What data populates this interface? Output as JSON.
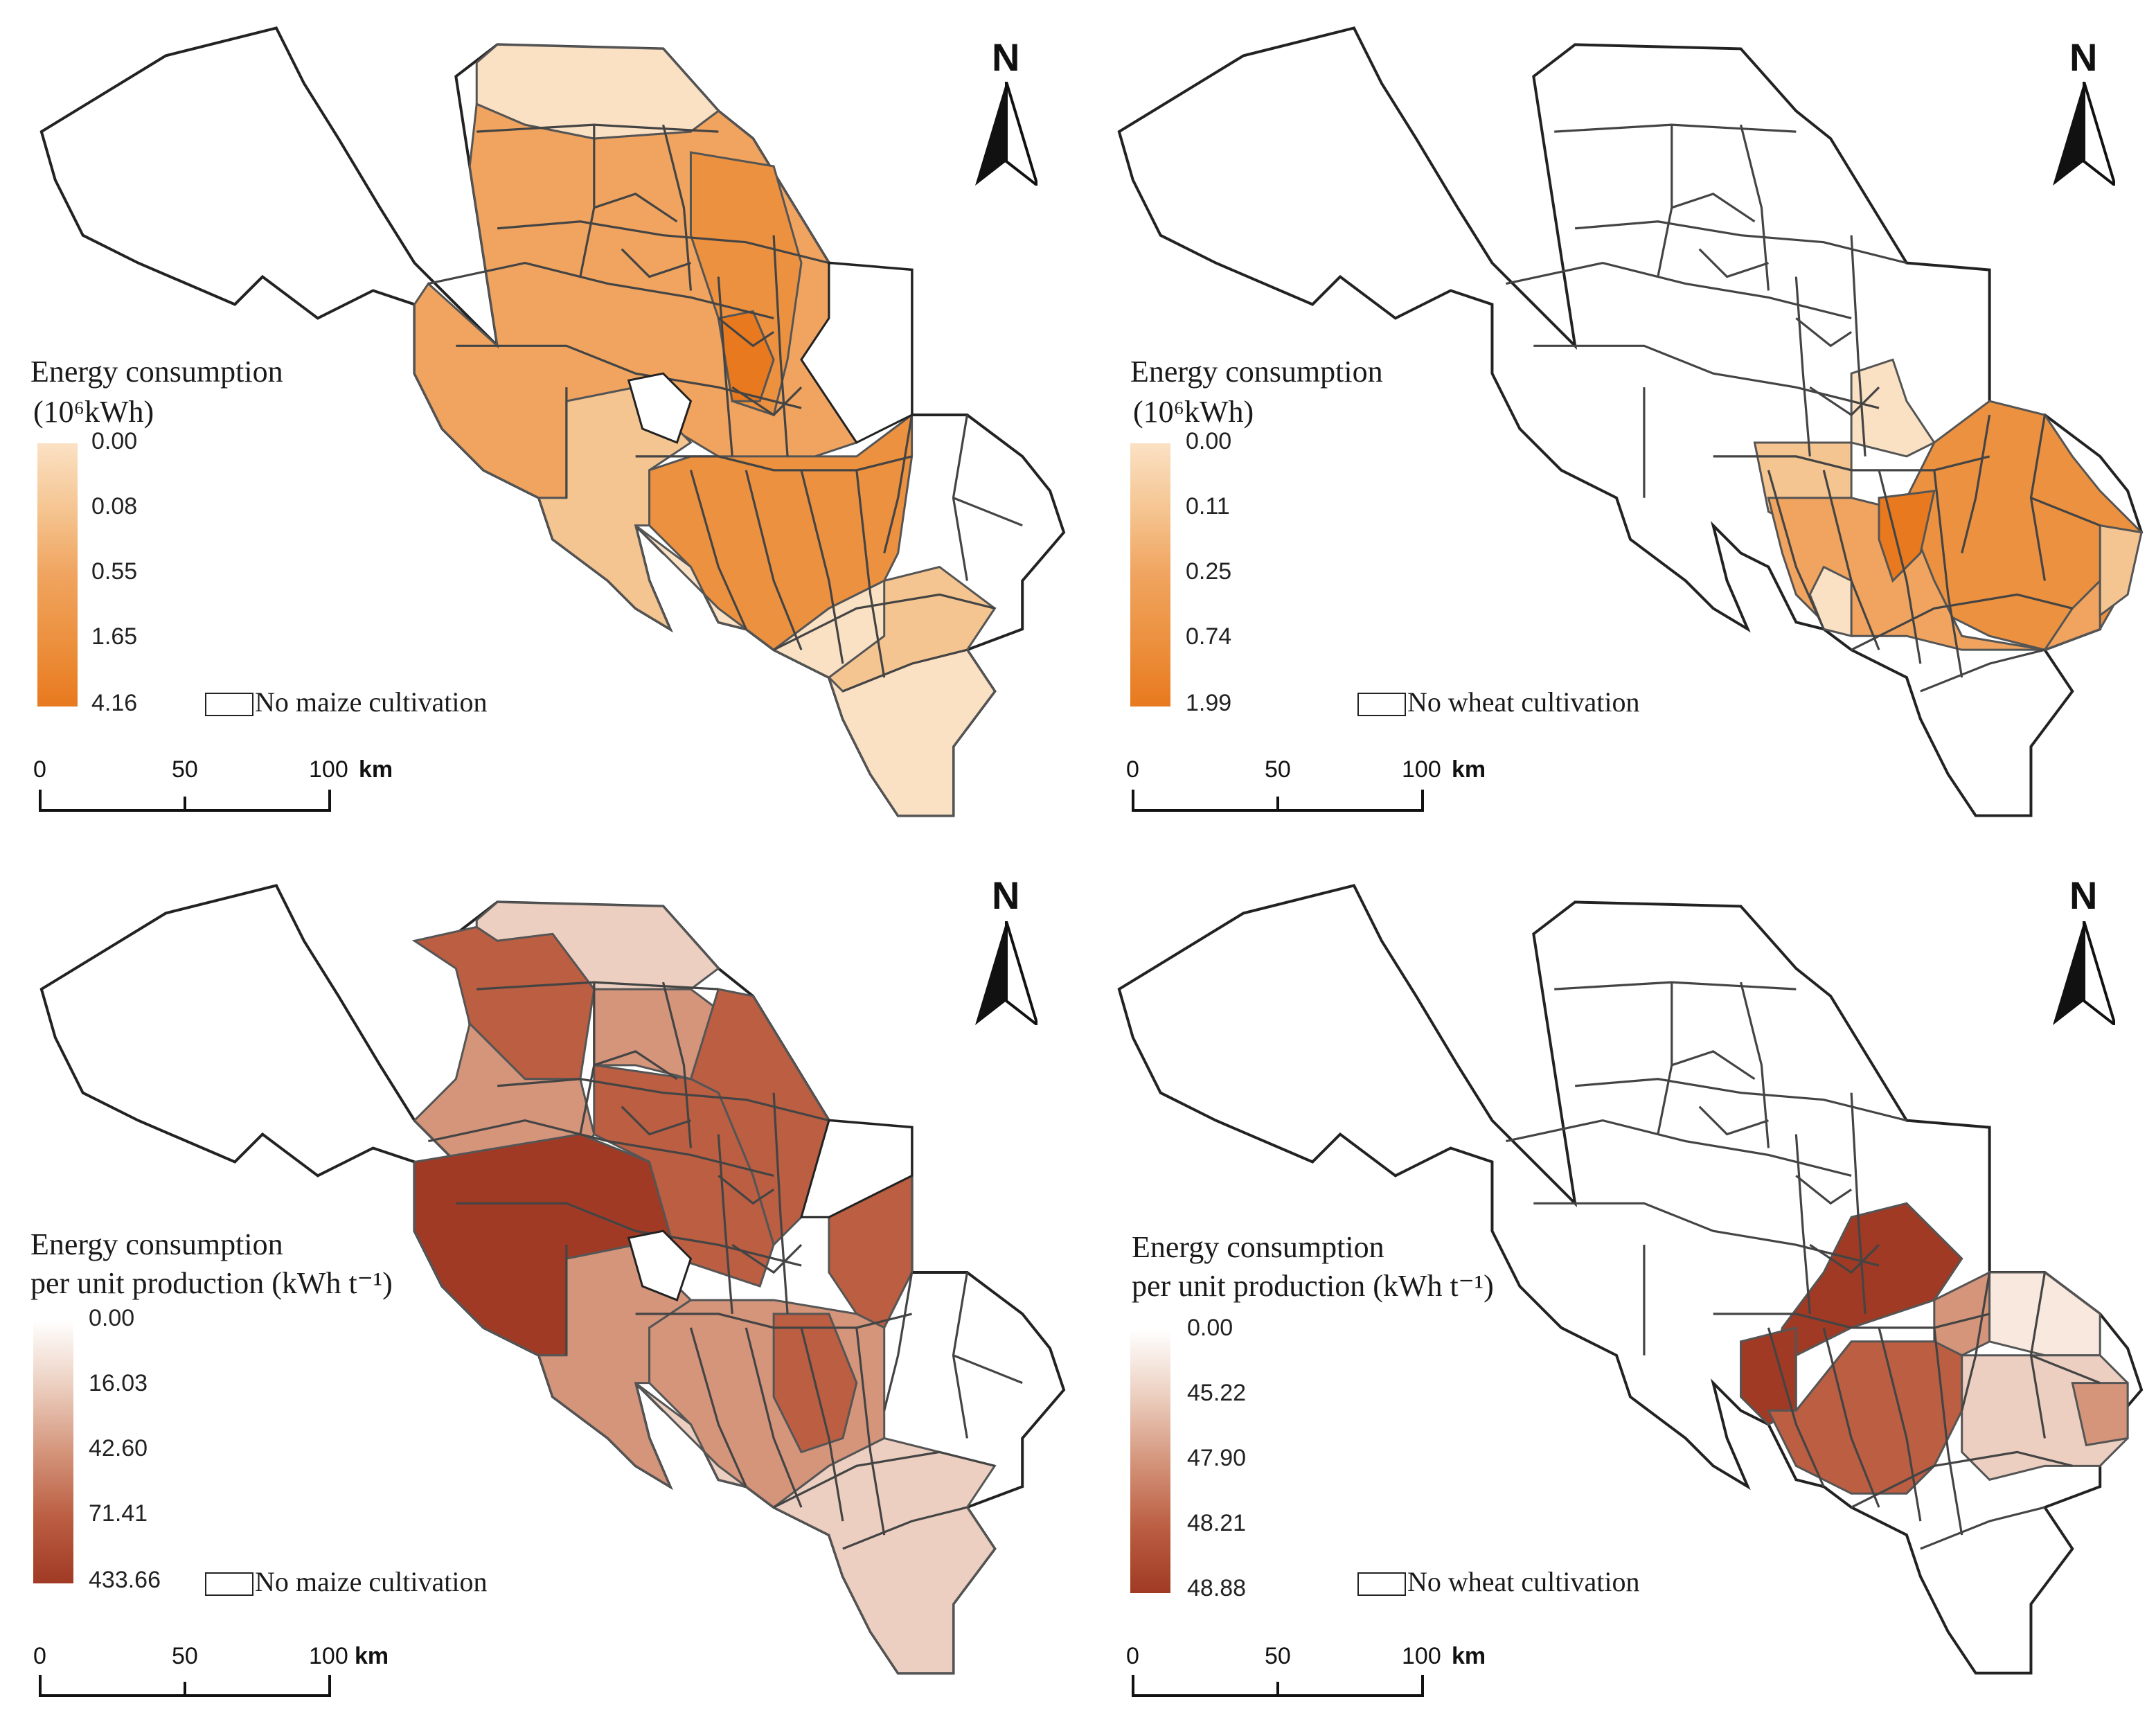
{
  "colors": {
    "orange_ramp": [
      "#fbe1c4",
      "#f5c591",
      "#f0a45f",
      "#ec913f",
      "#e8791e"
    ],
    "brown_ramp": [
      "#ffffff",
      "#eccfc0",
      "#d4957b",
      "#bb5e42",
      "#a03a24"
    ],
    "outline": "#222222"
  },
  "panels": [
    {
      "id": "maize-energy",
      "legend_title_line1": "Energy consumption",
      "legend_title_line2": "(10⁶kWh)",
      "ramp": "orange_ramp",
      "ticks": [
        "0.00",
        "0.08",
        "0.55",
        "1.65",
        "4.16"
      ],
      "no_data_label": "No maize cultivation",
      "scale": {
        "labels": [
          "0",
          "50",
          "100"
        ],
        "unit": "km"
      },
      "north": "N"
    },
    {
      "id": "wheat-energy",
      "legend_title_line1": "Energy consumption",
      "legend_title_line2": "(10⁶kWh)",
      "ramp": "orange_ramp",
      "ticks": [
        "0.00",
        "0.11",
        "0.25",
        "0.74",
        "1.99"
      ],
      "no_data_label": "No wheat cultivation",
      "scale": {
        "labels": [
          "0",
          "50",
          "100"
        ],
        "unit": "km"
      },
      "north": "N"
    },
    {
      "id": "maize-unit",
      "legend_title_line1": "Energy consumption",
      "legend_title_line2": "per unit production  (kWh t⁻¹)",
      "ramp": "brown_ramp",
      "ticks": [
        "0.00",
        "16.03",
        "42.60",
        "71.41",
        "433.66"
      ],
      "no_data_label": "No maize cultivation",
      "scale": {
        "labels": [
          "0",
          "50",
          "100"
        ],
        "unit": "km"
      },
      "north": "N"
    },
    {
      "id": "wheat-unit",
      "legend_title_line1": "Energy consumption",
      "legend_title_line2": "per unit production  (kWh t⁻¹)",
      "ramp": "brown_ramp",
      "ticks": [
        "0.00",
        "45.22",
        "47.90",
        "48.21",
        "48.88"
      ],
      "no_data_label": "No wheat cultivation",
      "scale": {
        "labels": [
          "0",
          "50",
          "100"
        ],
        "unit": "km"
      },
      "north": "N"
    }
  ]
}
